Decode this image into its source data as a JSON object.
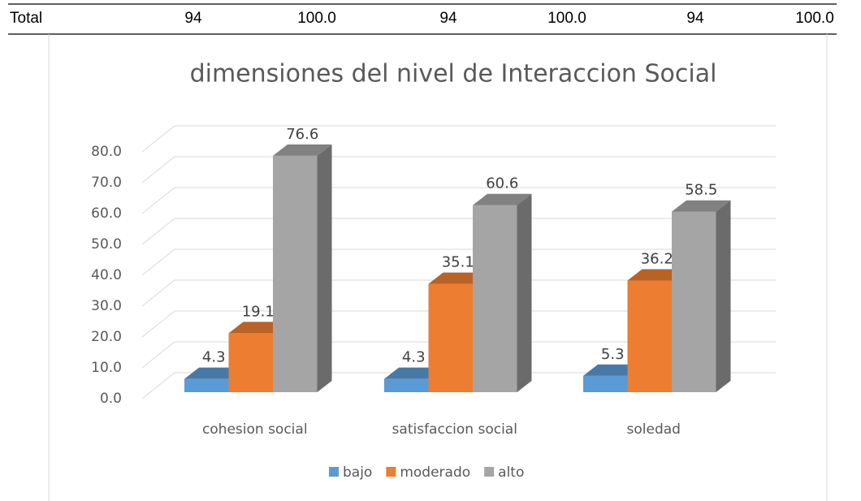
{
  "table": {
    "rows": [
      [
        "Total",
        "94",
        "100.0",
        "94",
        "100.0",
        "94",
        "100.0"
      ]
    ]
  },
  "chart_data": {
    "type": "bar3d",
    "title": "dimensiones del nivel de Interaccion Social",
    "categories": [
      "cohesion social",
      "satisfaccion social",
      "soledad"
    ],
    "series": [
      {
        "name": "bajo",
        "color": "#5b9bd5",
        "values": [
          4.3,
          4.3,
          5.3
        ]
      },
      {
        "name": "moderado",
        "color": "#ed7d31",
        "values": [
          19.1,
          35.1,
          36.2
        ]
      },
      {
        "name": "alto",
        "color": "#a5a5a5",
        "values": [
          76.6,
          60.6,
          58.5
        ]
      }
    ],
    "ylim": [
      0,
      80
    ],
    "yticks": [
      {
        "value": 0,
        "label": "0.0"
      },
      {
        "value": 10,
        "label": "10.0"
      },
      {
        "value": 20,
        "label": "20.0"
      },
      {
        "value": 30,
        "label": "30.0"
      },
      {
        "value": 40,
        "label": "40.0"
      },
      {
        "value": 50,
        "label": "50.0"
      },
      {
        "value": 60,
        "label": "60.0"
      },
      {
        "value": 70,
        "label": "70.0"
      },
      {
        "value": 80,
        "label": "80.0"
      }
    ],
    "grid": true,
    "legend": "bottom"
  }
}
